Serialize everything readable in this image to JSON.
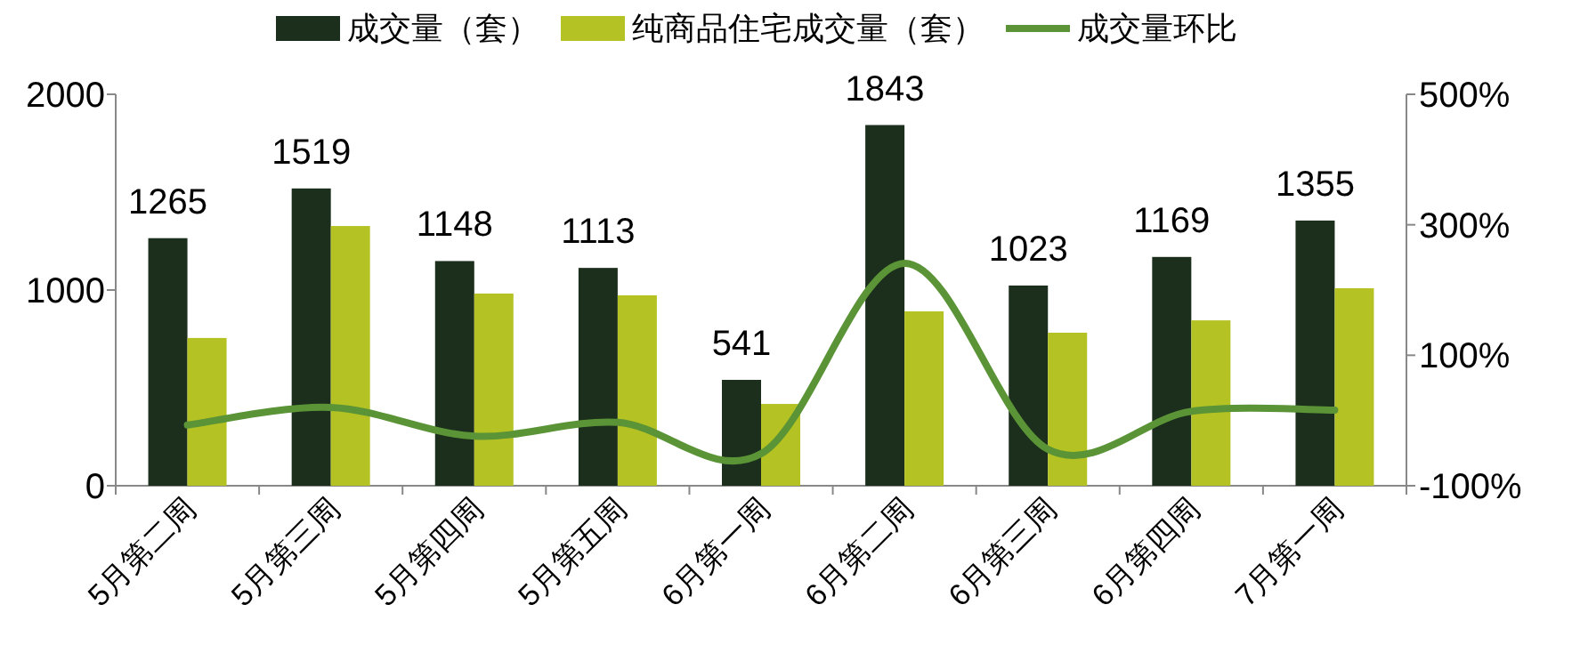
{
  "chart_data": {
    "type": "bar",
    "categories": [
      "5月第二周",
      "5月第三周",
      "5月第四周",
      "5月第五周",
      "6月第一周",
      "6月第二周",
      "6月第三周",
      "6月第四周",
      "7月第一周"
    ],
    "series": [
      {
        "name": "成交量（套）",
        "color": "#1c2e1c",
        "values": [
          1265,
          1519,
          1148,
          1113,
          541,
          1843,
          1023,
          1169,
          1355
        ],
        "value_labels": [
          "1265",
          "1519",
          "1148",
          "1113",
          "541",
          "1843",
          "1023",
          "1169",
          "1355"
        ]
      },
      {
        "name": "纯商品住宅成交量（套）",
        "color": "#b5c223",
        "values": [
          755,
          1327,
          982,
          973,
          418,
          891,
          782,
          845,
          1009
        ]
      },
      {
        "name": "成交量环比",
        "type": "line",
        "axis": "y2",
        "color": "#5a9436",
        "values": [
          -7,
          20,
          -24,
          -3,
          -51,
          241,
          -44,
          14,
          16
        ]
      }
    ],
    "ylim": [
      0,
      2000
    ],
    "yticks": [
      0,
      1000,
      2000
    ],
    "y2lim": [
      -100,
      500
    ],
    "y2ticks": [
      {
        "value": -100,
        "label": "-100%"
      },
      {
        "value": 100,
        "label": "100%"
      },
      {
        "value": 300,
        "label": "300%"
      },
      {
        "value": 500,
        "label": "500%"
      }
    ],
    "legend": "top",
    "grid": false
  }
}
